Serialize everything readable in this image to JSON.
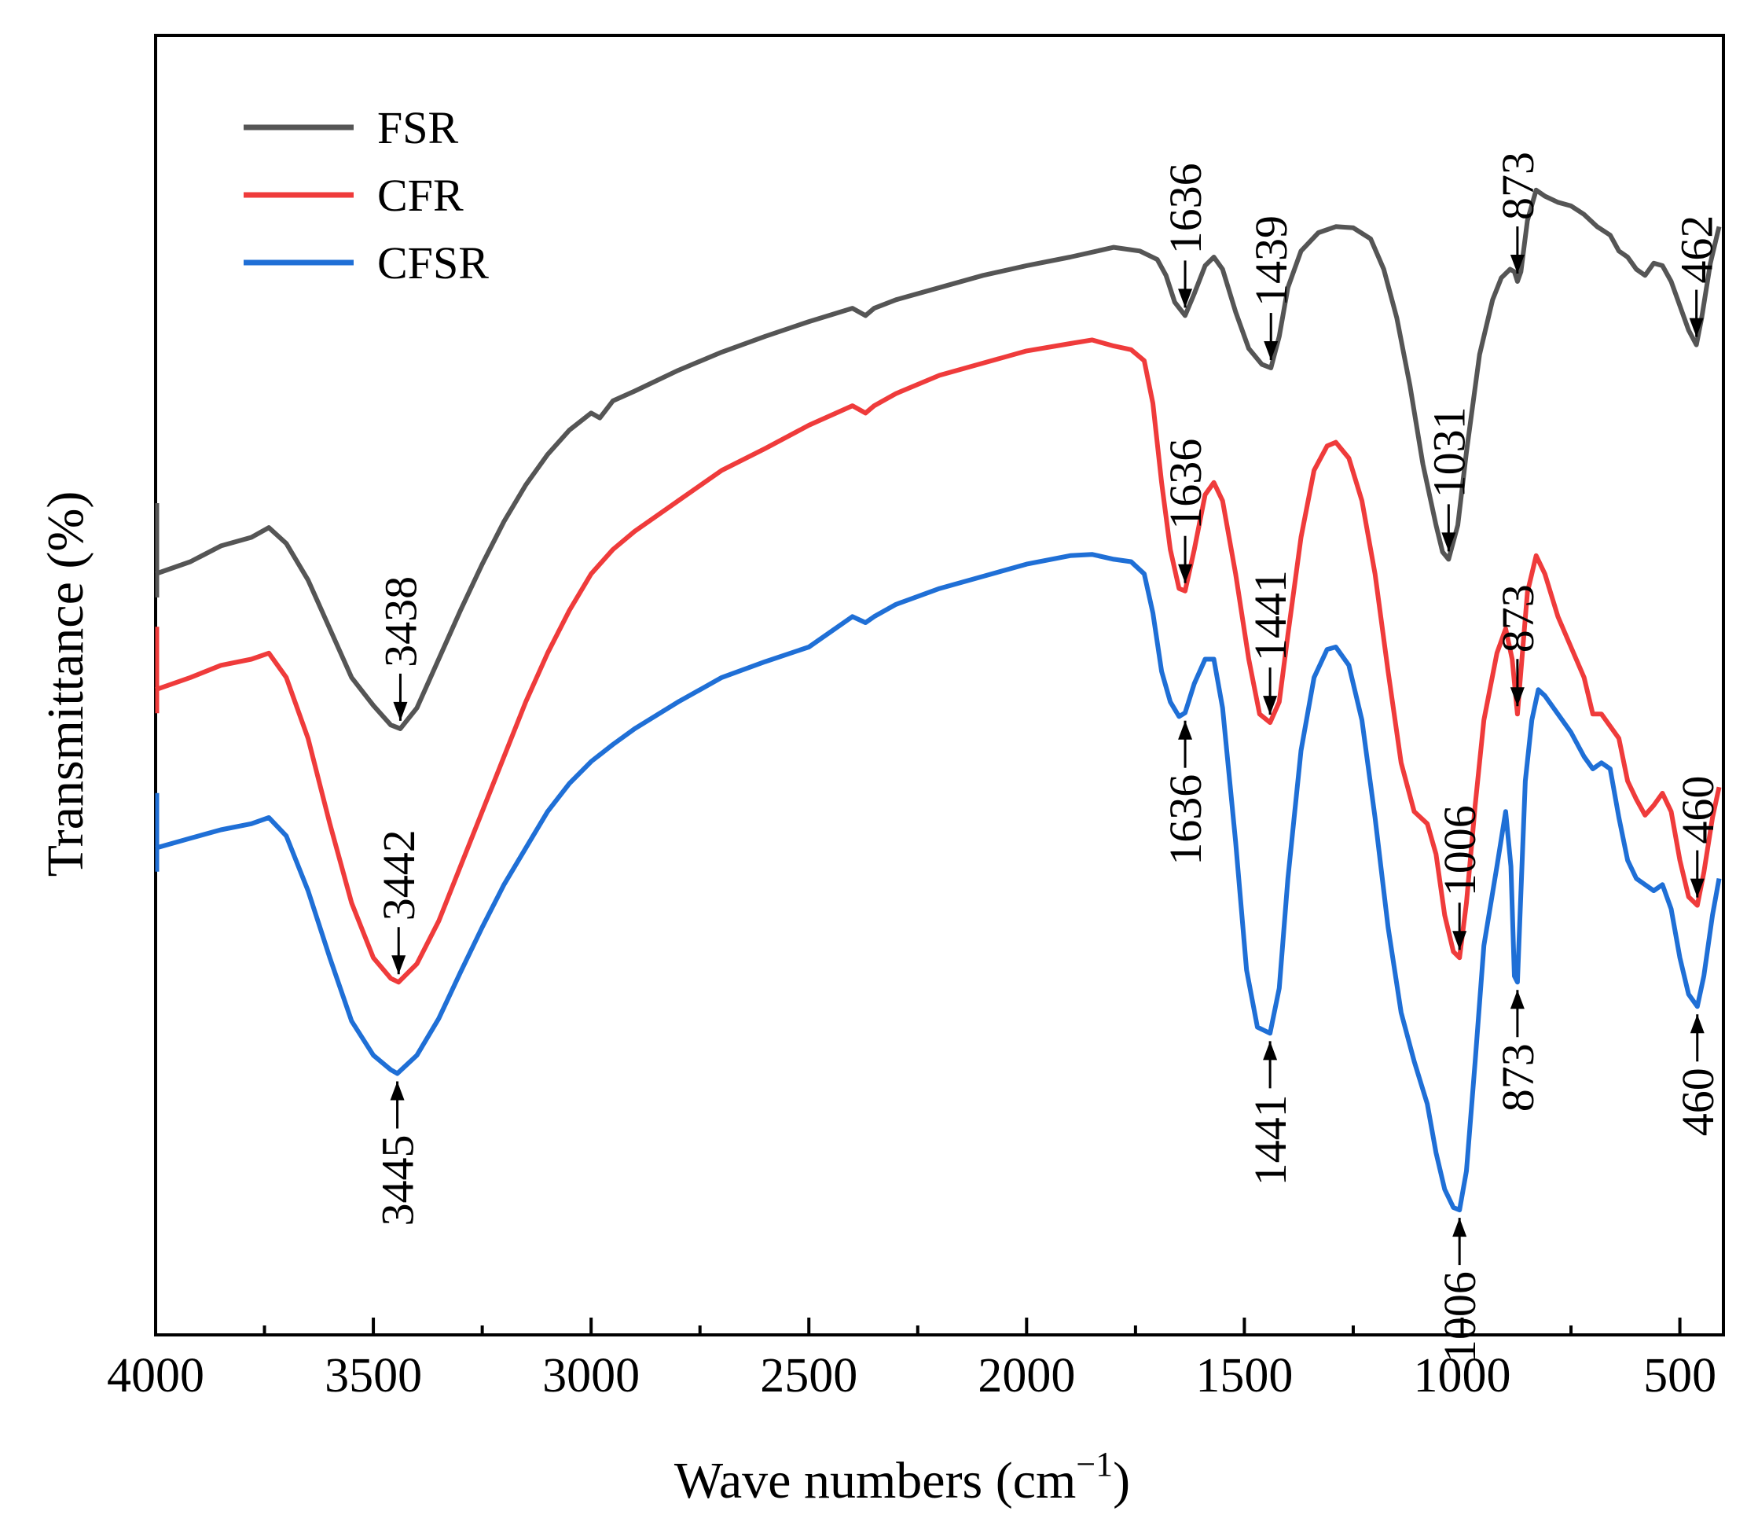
{
  "chart_data": {
    "type": "line",
    "xlabel": "Wave numbers (cm",
    "xlabel_sup": "−1",
    "xlabel_end": ")",
    "ylabel": "Transmittance (%)",
    "xlim": [
      4000,
      400
    ],
    "x_reversed": true,
    "xticks": [
      "4000",
      "3500",
      "3000",
      "2500",
      "2000",
      "1500",
      "1000",
      "500"
    ],
    "legend_position": "top-left",
    "grid": false,
    "series": [
      {
        "name": "FSR",
        "color": "#555555",
        "points": [
          [
            4000,
            60.0
          ],
          [
            3920,
            61.0
          ],
          [
            3850,
            62.3
          ],
          [
            3780,
            63.0
          ],
          [
            3740,
            63.8
          ],
          [
            3700,
            62.5
          ],
          [
            3650,
            59.5
          ],
          [
            3600,
            55.5
          ],
          [
            3550,
            51.5
          ],
          [
            3500,
            49.2
          ],
          [
            3460,
            47.6
          ],
          [
            3438,
            47.3
          ],
          [
            3400,
            49.0
          ],
          [
            3350,
            53.0
          ],
          [
            3300,
            57.0
          ],
          [
            3250,
            60.8
          ],
          [
            3200,
            64.3
          ],
          [
            3150,
            67.3
          ],
          [
            3100,
            69.8
          ],
          [
            3050,
            71.8
          ],
          [
            3000,
            73.2
          ],
          [
            2980,
            72.8
          ],
          [
            2950,
            74.2
          ],
          [
            2900,
            75.0
          ],
          [
            2800,
            76.7
          ],
          [
            2700,
            78.2
          ],
          [
            2600,
            79.5
          ],
          [
            2500,
            80.7
          ],
          [
            2400,
            81.8
          ],
          [
            2370,
            81.2
          ],
          [
            2350,
            81.8
          ],
          [
            2300,
            82.5
          ],
          [
            2200,
            83.5
          ],
          [
            2100,
            84.5
          ],
          [
            2000,
            85.3
          ],
          [
            1900,
            86.0
          ],
          [
            1800,
            86.8
          ],
          [
            1740,
            86.5
          ],
          [
            1700,
            85.8
          ],
          [
            1680,
            84.5
          ],
          [
            1660,
            82.3
          ],
          [
            1636,
            81.2
          ],
          [
            1615,
            83.0
          ],
          [
            1590,
            85.3
          ],
          [
            1570,
            86.0
          ],
          [
            1550,
            85.0
          ],
          [
            1520,
            81.5
          ],
          [
            1490,
            78.5
          ],
          [
            1460,
            77.2
          ],
          [
            1439,
            76.9
          ],
          [
            1420,
            79.5
          ],
          [
            1400,
            83.5
          ],
          [
            1370,
            86.5
          ],
          [
            1330,
            88.0
          ],
          [
            1290,
            88.5
          ],
          [
            1250,
            88.4
          ],
          [
            1210,
            87.5
          ],
          [
            1180,
            85.0
          ],
          [
            1150,
            81.0
          ],
          [
            1120,
            75.5
          ],
          [
            1090,
            69.0
          ],
          [
            1060,
            64.0
          ],
          [
            1045,
            61.8
          ],
          [
            1031,
            61.2
          ],
          [
            1010,
            64.0
          ],
          [
            990,
            70.0
          ],
          [
            960,
            78.0
          ],
          [
            930,
            82.5
          ],
          [
            910,
            84.3
          ],
          [
            890,
            85.0
          ],
          [
            880,
            84.8
          ],
          [
            873,
            84.0
          ],
          [
            865,
            84.8
          ],
          [
            850,
            89.0
          ],
          [
            830,
            91.5
          ],
          [
            810,
            91.0
          ],
          [
            780,
            90.5
          ],
          [
            750,
            90.2
          ],
          [
            720,
            89.5
          ],
          [
            690,
            88.5
          ],
          [
            660,
            87.8
          ],
          [
            640,
            86.5
          ],
          [
            620,
            86.0
          ],
          [
            600,
            85.0
          ],
          [
            580,
            84.5
          ],
          [
            560,
            85.5
          ],
          [
            540,
            85.3
          ],
          [
            520,
            84.0
          ],
          [
            500,
            82.0
          ],
          [
            480,
            80.0
          ],
          [
            462,
            78.8
          ],
          [
            450,
            81.0
          ],
          [
            430,
            85.5
          ],
          [
            410,
            88.5
          ]
        ]
      },
      {
        "name": "CFR",
        "color": "#ef3b3b",
        "points": [
          [
            4000,
            50.5
          ],
          [
            3920,
            51.5
          ],
          [
            3850,
            52.5
          ],
          [
            3780,
            53.0
          ],
          [
            3740,
            53.5
          ],
          [
            3700,
            51.5
          ],
          [
            3650,
            46.5
          ],
          [
            3600,
            39.5
          ],
          [
            3550,
            33.0
          ],
          [
            3500,
            28.5
          ],
          [
            3460,
            26.8
          ],
          [
            3442,
            26.5
          ],
          [
            3400,
            28.0
          ],
          [
            3350,
            31.5
          ],
          [
            3300,
            36.0
          ],
          [
            3250,
            40.5
          ],
          [
            3200,
            45.0
          ],
          [
            3150,
            49.5
          ],
          [
            3100,
            53.5
          ],
          [
            3050,
            57.0
          ],
          [
            3000,
            60.0
          ],
          [
            2950,
            62.0
          ],
          [
            2900,
            63.5
          ],
          [
            2800,
            66.0
          ],
          [
            2700,
            68.5
          ],
          [
            2600,
            70.3
          ],
          [
            2500,
            72.2
          ],
          [
            2400,
            73.8
          ],
          [
            2370,
            73.2
          ],
          [
            2350,
            73.8
          ],
          [
            2300,
            74.8
          ],
          [
            2200,
            76.3
          ],
          [
            2100,
            77.3
          ],
          [
            2000,
            78.3
          ],
          [
            1900,
            78.9
          ],
          [
            1850,
            79.2
          ],
          [
            1800,
            78.7
          ],
          [
            1760,
            78.4
          ],
          [
            1730,
            77.5
          ],
          [
            1710,
            74.0
          ],
          [
            1690,
            67.5
          ],
          [
            1670,
            62.0
          ],
          [
            1650,
            58.8
          ],
          [
            1636,
            58.6
          ],
          [
            1615,
            62.0
          ],
          [
            1590,
            66.5
          ],
          [
            1570,
            67.5
          ],
          [
            1550,
            66.0
          ],
          [
            1520,
            60.0
          ],
          [
            1490,
            53.0
          ],
          [
            1465,
            48.5
          ],
          [
            1441,
            47.8
          ],
          [
            1420,
            49.5
          ],
          [
            1400,
            55.0
          ],
          [
            1370,
            63.0
          ],
          [
            1340,
            68.5
          ],
          [
            1310,
            70.5
          ],
          [
            1290,
            70.8
          ],
          [
            1260,
            69.5
          ],
          [
            1230,
            66.0
          ],
          [
            1200,
            60.0
          ],
          [
            1170,
            52.0
          ],
          [
            1140,
            44.5
          ],
          [
            1110,
            40.5
          ],
          [
            1080,
            39.5
          ],
          [
            1060,
            37.0
          ],
          [
            1040,
            32.0
          ],
          [
            1020,
            29.0
          ],
          [
            1006,
            28.5
          ],
          [
            990,
            33.0
          ],
          [
            970,
            41.0
          ],
          [
            950,
            48.0
          ],
          [
            920,
            53.5
          ],
          [
            900,
            55.5
          ],
          [
            885,
            53.0
          ],
          [
            873,
            48.5
          ],
          [
            865,
            52.0
          ],
          [
            850,
            58.5
          ],
          [
            830,
            61.5
          ],
          [
            810,
            60.0
          ],
          [
            780,
            56.5
          ],
          [
            750,
            54.0
          ],
          [
            720,
            51.5
          ],
          [
            700,
            48.5
          ],
          [
            680,
            48.5
          ],
          [
            660,
            47.5
          ],
          [
            640,
            46.5
          ],
          [
            620,
            43.0
          ],
          [
            600,
            41.5
          ],
          [
            580,
            40.2
          ],
          [
            560,
            41.0
          ],
          [
            540,
            42.0
          ],
          [
            520,
            40.5
          ],
          [
            500,
            36.5
          ],
          [
            480,
            33.5
          ],
          [
            460,
            32.8
          ],
          [
            445,
            35.5
          ],
          [
            425,
            40.0
          ],
          [
            410,
            42.5
          ]
        ]
      },
      {
        "name": "CFSR",
        "color": "#1f6fd6",
        "points": [
          [
            4000,
            37.5
          ],
          [
            3920,
            38.3
          ],
          [
            3850,
            39.0
          ],
          [
            3780,
            39.5
          ],
          [
            3740,
            40.0
          ],
          [
            3700,
            38.5
          ],
          [
            3650,
            34.0
          ],
          [
            3600,
            28.5
          ],
          [
            3550,
            23.3
          ],
          [
            3500,
            20.5
          ],
          [
            3460,
            19.3
          ],
          [
            3445,
            19.0
          ],
          [
            3400,
            20.5
          ],
          [
            3350,
            23.5
          ],
          [
            3300,
            27.3
          ],
          [
            3250,
            31.0
          ],
          [
            3200,
            34.5
          ],
          [
            3150,
            37.5
          ],
          [
            3100,
            40.5
          ],
          [
            3050,
            42.8
          ],
          [
            3000,
            44.6
          ],
          [
            2950,
            46.0
          ],
          [
            2900,
            47.3
          ],
          [
            2800,
            49.5
          ],
          [
            2700,
            51.5
          ],
          [
            2600,
            52.8
          ],
          [
            2500,
            54.0
          ],
          [
            2400,
            56.5
          ],
          [
            2370,
            56.0
          ],
          [
            2350,
            56.5
          ],
          [
            2300,
            57.5
          ],
          [
            2200,
            58.8
          ],
          [
            2100,
            59.8
          ],
          [
            2000,
            60.8
          ],
          [
            1900,
            61.5
          ],
          [
            1850,
            61.6
          ],
          [
            1800,
            61.2
          ],
          [
            1760,
            61.0
          ],
          [
            1730,
            60.0
          ],
          [
            1710,
            56.8
          ],
          [
            1690,
            52.0
          ],
          [
            1670,
            49.5
          ],
          [
            1650,
            48.3
          ],
          [
            1636,
            48.6
          ],
          [
            1615,
            51.0
          ],
          [
            1590,
            53.0
          ],
          [
            1570,
            53.0
          ],
          [
            1550,
            49.0
          ],
          [
            1520,
            38.0
          ],
          [
            1495,
            27.5
          ],
          [
            1470,
            22.8
          ],
          [
            1441,
            22.3
          ],
          [
            1420,
            26.0
          ],
          [
            1400,
            35.0
          ],
          [
            1370,
            45.5
          ],
          [
            1340,
            51.5
          ],
          [
            1310,
            53.8
          ],
          [
            1290,
            54.0
          ],
          [
            1260,
            52.5
          ],
          [
            1230,
            48.0
          ],
          [
            1200,
            40.0
          ],
          [
            1170,
            31.0
          ],
          [
            1140,
            24.0
          ],
          [
            1110,
            20.0
          ],
          [
            1080,
            16.5
          ],
          [
            1060,
            12.5
          ],
          [
            1040,
            9.5
          ],
          [
            1020,
            8.0
          ],
          [
            1006,
            7.8
          ],
          [
            990,
            11.0
          ],
          [
            970,
            20.0
          ],
          [
            950,
            29.5
          ],
          [
            920,
            36.0
          ],
          [
            900,
            40.5
          ],
          [
            888,
            36.0
          ],
          [
            880,
            27.0
          ],
          [
            873,
            26.5
          ],
          [
            866,
            33.0
          ],
          [
            855,
            43.0
          ],
          [
            840,
            48.0
          ],
          [
            825,
            50.5
          ],
          [
            810,
            50.0
          ],
          [
            780,
            48.5
          ],
          [
            750,
            47.0
          ],
          [
            720,
            45.0
          ],
          [
            700,
            44.0
          ],
          [
            680,
            44.5
          ],
          [
            660,
            44.0
          ],
          [
            640,
            40.0
          ],
          [
            620,
            36.5
          ],
          [
            600,
            35.0
          ],
          [
            580,
            34.5
          ],
          [
            560,
            34.0
          ],
          [
            540,
            34.5
          ],
          [
            520,
            32.5
          ],
          [
            500,
            28.5
          ],
          [
            480,
            25.5
          ],
          [
            460,
            24.5
          ],
          [
            445,
            27.0
          ],
          [
            425,
            32.0
          ],
          [
            410,
            35.0
          ]
        ]
      }
    ],
    "annotations": [
      {
        "label": "3438",
        "series": 0,
        "x": 3438
      },
      {
        "label": "1636",
        "series": 0,
        "x": 1636
      },
      {
        "label": "1439",
        "series": 0,
        "x": 1439
      },
      {
        "label": "1031",
        "series": 0,
        "x": 1031
      },
      {
        "label": "873",
        "series": 0,
        "x": 873
      },
      {
        "label": "462",
        "series": 0,
        "x": 462
      },
      {
        "label": "3442",
        "series": 1,
        "x": 3442
      },
      {
        "label": "1636",
        "series": 1,
        "x": 1636
      },
      {
        "label": "1441",
        "series": 1,
        "x": 1441
      },
      {
        "label": "1006",
        "series": 1,
        "x": 1006
      },
      {
        "label": "873",
        "series": 1,
        "x": 873
      },
      {
        "label": "460",
        "series": 1,
        "x": 460
      },
      {
        "label": "3445",
        "series": 2,
        "x": 3445
      },
      {
        "label": "1636",
        "series": 2,
        "x": 1636
      },
      {
        "label": "1441",
        "series": 2,
        "x": 1441
      },
      {
        "label": "1006",
        "series": 2,
        "x": 1006
      },
      {
        "label": "873",
        "series": 2,
        "x": 873
      },
      {
        "label": "460",
        "series": 2,
        "x": 460
      }
    ]
  }
}
